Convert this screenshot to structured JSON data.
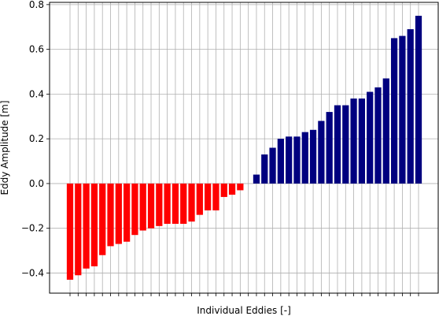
{
  "chart_data": {
    "type": "bar",
    "xlabel": "Individual Eddies [-]",
    "ylabel": "Eddy Amplitude [m]",
    "ylim": [
      -0.49,
      0.81
    ],
    "yticks": [
      -0.4,
      -0.2,
      0.0,
      0.2,
      0.4,
      0.6,
      0.8
    ],
    "ytick_labels": [
      "−0.4",
      "−0.2",
      "0.0",
      "0.2",
      "0.4",
      "0.6",
      "0.8"
    ],
    "grid": true,
    "negative_color": "#ff0000",
    "positive_color": "#00007f",
    "values": [
      -0.43,
      -0.41,
      -0.38,
      -0.37,
      -0.32,
      -0.28,
      -0.27,
      -0.26,
      -0.23,
      -0.21,
      -0.2,
      -0.19,
      -0.18,
      -0.18,
      -0.18,
      -0.17,
      -0.14,
      -0.12,
      -0.12,
      -0.06,
      -0.05,
      -0.03,
      0.0,
      0.04,
      0.13,
      0.16,
      0.2,
      0.21,
      0.21,
      0.23,
      0.24,
      0.28,
      0.32,
      0.35,
      0.35,
      0.38,
      0.38,
      0.41,
      0.43,
      0.47,
      0.65,
      0.66,
      0.69,
      0.75
    ]
  }
}
